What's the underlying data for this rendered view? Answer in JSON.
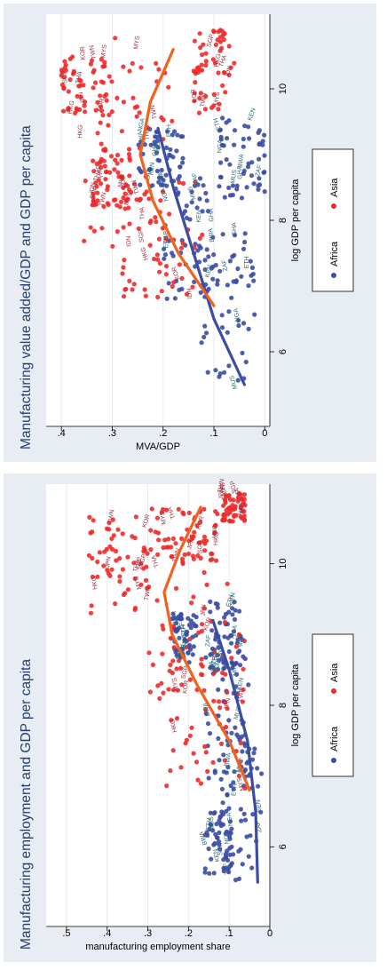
{
  "colors": {
    "africa": "#3a4da3",
    "africa_label": "#2c6b7a",
    "asia": "#ee2a2a",
    "asia_label": "#9c2f3f",
    "asia_fit": "#f0621e",
    "panel_bg": "#e8edf3",
    "title": "#1f3f74"
  },
  "chart_data": [
    {
      "type": "scatter",
      "title": "Manufacturing employment and GDP per capita",
      "xlabel": "log GDP per capita",
      "ylabel": "manufacturing employment share",
      "xlim": [
        5,
        11
      ],
      "ylim": [
        0,
        0.55
      ],
      "xticks": [
        "6",
        "8",
        "10"
      ],
      "yticks": [
        "0",
        ".1",
        ".2",
        ".3",
        ".4",
        ".5"
      ],
      "grid": true,
      "legend_position": "bottom",
      "series": [
        {
          "name": "Africa",
          "point_label_samples": [
            "NGA",
            "SEN",
            "BWA",
            "MUS",
            "ZAF",
            "ETH",
            "KEN"
          ],
          "clusters": [
            {
              "x": [
                5.5,
                7.8
              ],
              "y": [
                0.02,
                0.12
              ]
            },
            {
              "x": [
                6.8,
                8.8
              ],
              "y": [
                0.05,
                0.16
              ]
            },
            {
              "x": [
                5.6,
                6.5
              ],
              "y": [
                0.09,
                0.16
              ]
            },
            {
              "x": [
                8.5,
                9.5
              ],
              "y": [
                0.06,
                0.15
              ]
            },
            {
              "x": [
                8.6,
                9.3
              ],
              "y": [
                0.18,
                0.24
              ]
            }
          ],
          "fit": {
            "x": [
              5.5,
              6.5,
              7.5,
              8.5,
              9.2
            ],
            "y": [
              0.03,
              0.035,
              0.055,
              0.1,
              0.14
            ]
          }
        },
        {
          "name": "Asia",
          "point_label_samples": [
            "HKG",
            "KOR",
            "SGP",
            "TWN",
            "THA",
            "JPN",
            "MYS"
          ],
          "clusters": [
            {
              "x": [
                6.8,
                9.2
              ],
              "y": [
                0.06,
                0.26
              ]
            },
            {
              "x": [
                8.0,
                10.5
              ],
              "y": [
                0.1,
                0.32
              ]
            },
            {
              "x": [
                9.3,
                10.7
              ],
              "y": [
                0.3,
                0.45
              ]
            },
            {
              "x": [
                10.0,
                10.8
              ],
              "y": [
                0.12,
                0.3
              ]
            },
            {
              "x": [
                10.6,
                11.0
              ],
              "y": [
                0.06,
                0.12
              ]
            }
          ],
          "fit": {
            "x": [
              6.8,
              7.5,
              8.3,
              9.0,
              9.6,
              10.2,
              10.8
            ],
            "y": [
              0.05,
              0.1,
              0.18,
              0.24,
              0.26,
              0.22,
              0.17
            ]
          }
        }
      ]
    },
    {
      "type": "scatter",
      "title": "Manufacturing value added/GDP and GDP per capita",
      "xlabel": "log GDP per capita",
      "ylabel": "MVA/GDP",
      "xlim": [
        5,
        11
      ],
      "ylim": [
        -0.01,
        0.43
      ],
      "xticks": [
        "6",
        "8",
        "10"
      ],
      "yticks": [
        "0",
        ".1",
        ".2",
        ".3",
        ".4"
      ],
      "grid": true,
      "legend_position": "bottom",
      "series": [
        {
          "name": "Africa",
          "point_label_samples": [
            "BWA",
            "ZAF",
            "MUS",
            "NGA",
            "KEN",
            "ETH",
            "GHA"
          ],
          "clusters": [
            {
              "x": [
                5.4,
                7.8
              ],
              "y": [
                0.02,
                0.13
              ]
            },
            {
              "x": [
                6.8,
                8.8
              ],
              "y": [
                0.1,
                0.2
              ]
            },
            {
              "x": [
                8.3,
                9.6
              ],
              "y": [
                0.0,
                0.09
              ]
            },
            {
              "x": [
                8.5,
                9.4
              ],
              "y": [
                0.16,
                0.25
              ]
            }
          ],
          "fit": {
            "x": [
              5.5,
              6.5,
              7.5,
              8.5,
              9.4
            ],
            "y": [
              0.04,
              0.1,
              0.14,
              0.18,
              0.21
            ]
          }
        },
        {
          "name": "Asia",
          "point_label_samples": [
            "KOR",
            "THA",
            "HKG",
            "SGP",
            "TWN",
            "MYS",
            "IDN"
          ],
          "clusters": [
            {
              "x": [
                6.8,
                8.6
              ],
              "y": [
                0.12,
                0.3
              ]
            },
            {
              "x": [
                7.6,
                10.8
              ],
              "y": [
                0.18,
                0.36
              ]
            },
            {
              "x": [
                9.6,
                10.5
              ],
              "y": [
                0.3,
                0.4
              ]
            },
            {
              "x": [
                8.2,
                9.1
              ],
              "y": [
                0.26,
                0.34
              ]
            },
            {
              "x": [
                9.6,
                10.9
              ],
              "y": [
                0.06,
                0.14
              ]
            }
          ],
          "fit": {
            "x": [
              6.7,
              7.5,
              8.3,
              9.0,
              9.8,
              10.6
            ],
            "y": [
              0.1,
              0.17,
              0.22,
              0.245,
              0.225,
              0.18
            ]
          }
        }
      ]
    }
  ]
}
